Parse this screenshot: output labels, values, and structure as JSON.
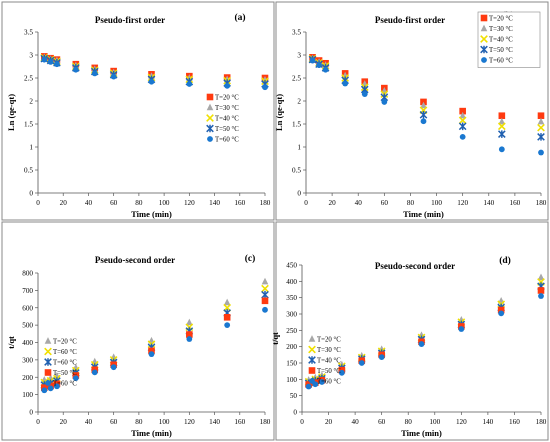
{
  "chart_data": [
    {
      "type": "scatter",
      "panel_label": "(a)",
      "title": "Pseudo-first order",
      "xlabel": "Time (min)",
      "ylabel": "Ln (qe-qt)",
      "xlim": [
        0,
        180
      ],
      "ylim": [
        0,
        3.5
      ],
      "xticks": [
        0,
        20,
        40,
        60,
        80,
        100,
        120,
        140,
        160,
        180
      ],
      "yticks": [
        0,
        0.5,
        1,
        1.5,
        2,
        2.5,
        3,
        3.5
      ],
      "ytick_labels": [
        "0",
        "0.5",
        "1",
        "1.5",
        "2",
        "2.5",
        "3",
        "3.5"
      ],
      "grid": false,
      "legend_position": "bottom-right",
      "x": [
        5,
        10,
        15,
        30,
        45,
        60,
        90,
        120,
        150,
        180
      ],
      "series": [
        {
          "name": "T=20 °C",
          "marker": "square",
          "color": "#ff3a10",
          "values": [
            2.97,
            2.93,
            2.9,
            2.8,
            2.72,
            2.65,
            2.58,
            2.54,
            2.51,
            2.5
          ]
        },
        {
          "name": "T=30 °C",
          "marker": "triangle",
          "color": "#a8a8a8",
          "values": [
            2.95,
            2.91,
            2.88,
            2.77,
            2.69,
            2.62,
            2.54,
            2.5,
            2.47,
            2.46
          ]
        },
        {
          "name": "T=40 °C",
          "marker": "x",
          "color": "#f0e000",
          "values": [
            2.94,
            2.9,
            2.86,
            2.75,
            2.67,
            2.6,
            2.51,
            2.47,
            2.44,
            2.43
          ]
        },
        {
          "name": "T=50 °C",
          "marker": "star",
          "color": "#2060b0",
          "values": [
            2.92,
            2.88,
            2.83,
            2.72,
            2.64,
            2.57,
            2.47,
            2.42,
            2.39,
            2.37
          ]
        },
        {
          "name": "T=60 °C",
          "marker": "circle",
          "color": "#1a78d0",
          "values": [
            2.9,
            2.85,
            2.8,
            2.68,
            2.6,
            2.53,
            2.42,
            2.37,
            2.33,
            2.3
          ]
        }
      ]
    },
    {
      "type": "scatter",
      "panel_label": "(b)",
      "title": "Pseudo-first order",
      "xlabel": "Time (min)",
      "ylabel": "Ln (qe-qt)",
      "xlim": [
        0,
        180
      ],
      "ylim": [
        0,
        3.5
      ],
      "xticks": [
        0,
        20,
        40,
        60,
        80,
        100,
        120,
        140,
        160,
        180
      ],
      "yticks": [
        0,
        0.5,
        1,
        1.5,
        2,
        2.5,
        3,
        3.5
      ],
      "ytick_labels": [
        "0",
        "0.5",
        "1",
        "1.5",
        "2",
        "2.5",
        "3",
        "3.5"
      ],
      "grid": false,
      "legend_position": "top-right",
      "x": [
        5,
        10,
        15,
        30,
        45,
        60,
        90,
        120,
        150,
        180
      ],
      "series": [
        {
          "name": "T=20 °C",
          "marker": "square",
          "color": "#ff3a10",
          "values": [
            2.95,
            2.88,
            2.82,
            2.6,
            2.42,
            2.28,
            1.98,
            1.78,
            1.68,
            1.68
          ]
        },
        {
          "name": "T=30 °C",
          "marker": "triangle",
          "color": "#a8a8a8",
          "values": [
            2.93,
            2.85,
            2.78,
            2.55,
            2.37,
            2.22,
            1.9,
            1.68,
            1.55,
            1.55
          ]
        },
        {
          "name": "T=40 °C",
          "marker": "x",
          "color": "#f0e000",
          "values": [
            2.92,
            2.83,
            2.76,
            2.5,
            2.3,
            2.15,
            1.8,
            1.58,
            1.45,
            1.42
          ]
        },
        {
          "name": "T=50 °C",
          "marker": "star",
          "color": "#2060b0",
          "values": [
            2.9,
            2.8,
            2.72,
            2.45,
            2.25,
            2.08,
            1.7,
            1.45,
            1.28,
            1.22
          ]
        },
        {
          "name": "T=60 °C",
          "marker": "circle",
          "color": "#1a78d0",
          "values": [
            2.88,
            2.78,
            2.68,
            2.38,
            2.15,
            1.98,
            1.56,
            1.22,
            0.95,
            0.88
          ]
        }
      ]
    },
    {
      "type": "scatter",
      "panel_label": "(c)",
      "title": "Pseudo-second order",
      "xlabel": "Time (min)",
      "ylabel": "t/qt",
      "xlim": [
        0,
        180
      ],
      "ylim": [
        0,
        800
      ],
      "xticks": [
        0,
        20,
        40,
        60,
        80,
        100,
        120,
        140,
        160,
        180
      ],
      "yticks": [
        0,
        100,
        200,
        300,
        400,
        500,
        600,
        700,
        800
      ],
      "ytick_labels": [
        "0",
        "100",
        "200",
        "300",
        "400",
        "500",
        "600",
        "700",
        "800"
      ],
      "grid": false,
      "legend_position": "left",
      "x": [
        5,
        10,
        15,
        30,
        45,
        60,
        90,
        120,
        150,
        180
      ],
      "series": [
        {
          "name": "T=20 °C",
          "marker": "triangle",
          "color": "#a8a8a8",
          "values": [
            185,
            195,
            208,
            255,
            290,
            315,
            410,
            515,
            630,
            750
          ]
        },
        {
          "name": "T=60 °C",
          "marker": "x",
          "color": "#f0e000",
          "values": [
            170,
            180,
            192,
            238,
            272,
            300,
            390,
            488,
            600,
            710
          ]
        },
        {
          "name": "T=60 °C",
          "marker": "star",
          "color": "#2060b0",
          "values": [
            155,
            165,
            178,
            225,
            258,
            285,
            372,
            466,
            570,
            675
          ]
        },
        {
          "name": "T=50 °C",
          "marker": "square",
          "color": "#ff3a10",
          "values": [
            140,
            150,
            162,
            210,
            243,
            272,
            352,
            446,
            545,
            640
          ]
        },
        {
          "name": "T=60 °C",
          "marker": "circle",
          "color": "#1a78d0",
          "values": [
            125,
            136,
            148,
            195,
            228,
            258,
            333,
            420,
            500,
            588
          ]
        }
      ]
    },
    {
      "type": "scatter",
      "panel_label": "(d)",
      "title": "Pseudo-second order",
      "xlabel": "Time (min)",
      "ylabel": "t/qt",
      "xlim": [
        0,
        180
      ],
      "ylim": [
        0,
        450
      ],
      "xticks": [
        0,
        20,
        40,
        60,
        80,
        100,
        120,
        140,
        160,
        180
      ],
      "yticks": [
        0,
        50,
        100,
        150,
        200,
        250,
        300,
        350,
        400,
        450
      ],
      "ytick_labels": [
        "0",
        "50",
        "100",
        "150",
        "200",
        "250",
        "300",
        "350",
        "400",
        "450"
      ],
      "grid": false,
      "legend_position": "left",
      "x": [
        5,
        10,
        15,
        30,
        45,
        60,
        90,
        120,
        150,
        180
      ],
      "series": [
        {
          "name": "T=20 °C",
          "marker": "triangle",
          "color": "#a8a8a8",
          "values": [
            98,
            105,
            112,
            145,
            172,
            192,
            235,
            282,
            340,
            412
          ]
        },
        {
          "name": "T=30 °C",
          "marker": "x",
          "color": "#f0e000",
          "values": [
            93,
            100,
            107,
            140,
            167,
            186,
            228,
            275,
            330,
            398
          ]
        },
        {
          "name": "T=40 °C",
          "marker": "star",
          "color": "#2060b0",
          "values": [
            88,
            95,
            102,
            134,
            162,
            180,
            222,
            268,
            320,
            385
          ]
        },
        {
          "name": "T=50 °C",
          "marker": "square",
          "color": "#ff3a10",
          "values": [
            84,
            90,
            97,
            128,
            157,
            175,
            215,
            262,
            312,
            372
          ]
        },
        {
          "name": "T=60 °C",
          "marker": "circle",
          "color": "#1a78d0",
          "values": [
            78,
            85,
            92,
            120,
            150,
            168,
            208,
            254,
            302,
            355
          ]
        }
      ]
    }
  ]
}
